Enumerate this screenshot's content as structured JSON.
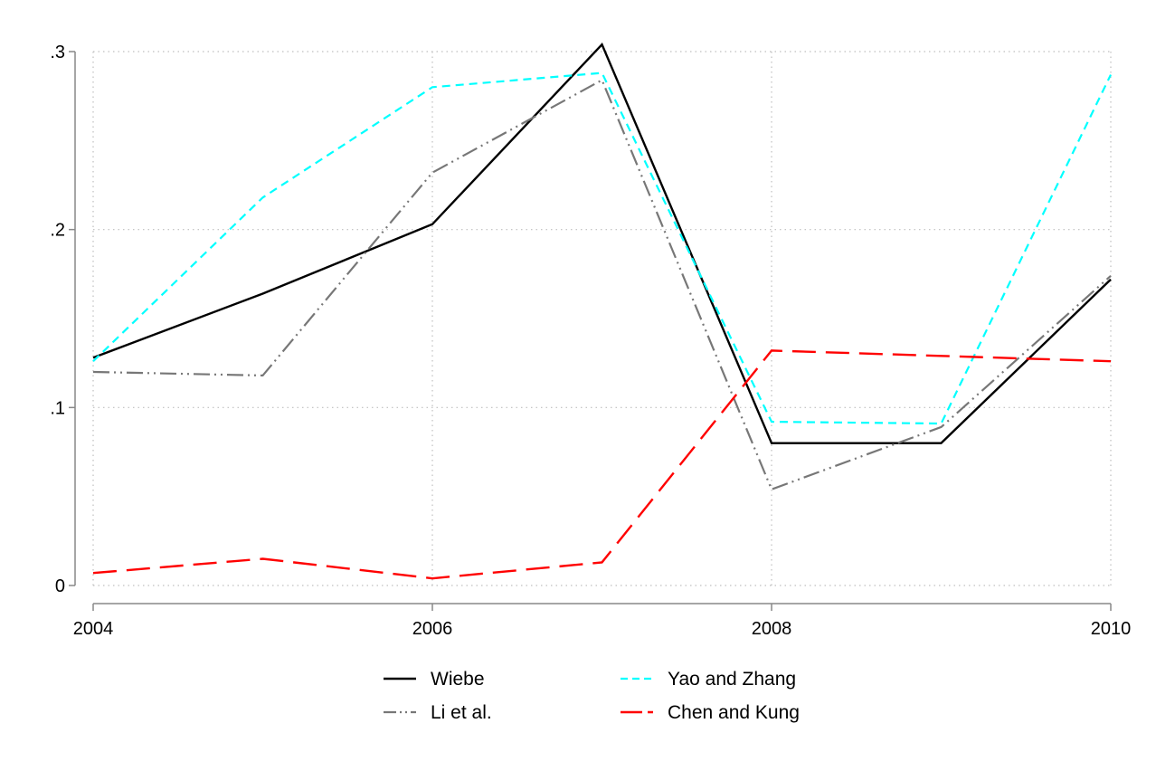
{
  "chart_data": {
    "type": "line",
    "title": "",
    "xlabel": "",
    "ylabel": "",
    "x": [
      2004,
      2005,
      2006,
      2007,
      2008,
      2009,
      2010
    ],
    "xlim": [
      2004,
      2010
    ],
    "ylim": [
      0,
      0.3
    ],
    "x_ticks": [
      2004,
      2006,
      2008,
      2010
    ],
    "x_tick_labels": [
      "2004",
      "2006",
      "2008",
      "2010"
    ],
    "y_ticks": [
      0,
      0.1,
      0.2,
      0.3
    ],
    "y_tick_labels": [
      "0",
      ".1",
      ".2",
      ".3"
    ],
    "grid": true,
    "legend_position": "bottom",
    "series": [
      {
        "name": "Wiebe",
        "color": "#000000",
        "style": "solid",
        "values": [
          0.128,
          0.164,
          0.203,
          0.304,
          0.08,
          0.08,
          0.172
        ]
      },
      {
        "name": "Yao and Zhang",
        "color": "#00ffff",
        "style": "dash",
        "values": [
          0.126,
          0.218,
          0.28,
          0.288,
          0.092,
          0.091,
          0.287
        ]
      },
      {
        "name": "Li et al.",
        "color": "#777777",
        "style": "dash-dot-dot",
        "values": [
          0.12,
          0.118,
          0.232,
          0.284,
          0.054,
          0.089,
          0.174
        ]
      },
      {
        "name": "Chen and Kung",
        "color": "#ff0000",
        "style": "long-dash",
        "values": [
          0.007,
          0.015,
          0.004,
          0.013,
          0.132,
          0.129,
          0.126
        ]
      }
    ]
  }
}
